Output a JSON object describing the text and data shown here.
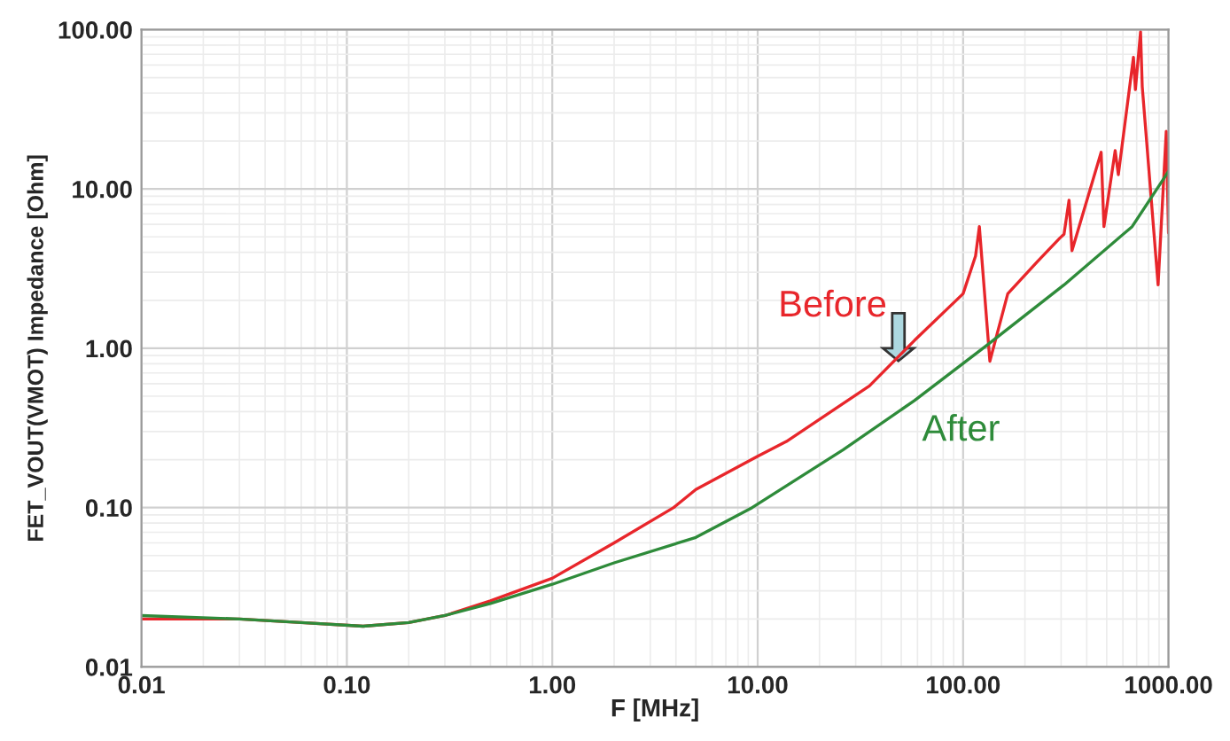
{
  "chart_data": {
    "type": "line",
    "xlabel": "F [MHz]",
    "ylabel": "FET_VOUT(VMOT) Impedance [Ohm]",
    "log": "xy",
    "grid": true,
    "legend": false,
    "xlim": [
      0.01,
      1000
    ],
    "ylim": [
      0.01,
      100
    ],
    "xticks": [
      {
        "value": 0.01,
        "label": "0.01"
      },
      {
        "value": 0.1,
        "label": "0.10"
      },
      {
        "value": 1,
        "label": "1.00"
      },
      {
        "value": 10,
        "label": "10.00"
      },
      {
        "value": 100,
        "label": "100.00"
      },
      {
        "value": 1000,
        "label": "1000.00"
      }
    ],
    "yticks": [
      {
        "value": 0.01,
        "label": "0.01"
      },
      {
        "value": 0.1,
        "label": "0.10"
      },
      {
        "value": 1,
        "label": "1.00"
      },
      {
        "value": 10,
        "label": "10.00"
      },
      {
        "value": 100,
        "label": "100.00"
      }
    ],
    "series": [
      {
        "name": "Before",
        "color": "#e8262b",
        "x": [
          0.01,
          0.03,
          0.06,
          0.12,
          0.2,
          0.3,
          0.5,
          1,
          2,
          3.9,
          5,
          10,
          13.8,
          35,
          58,
          100,
          115,
          120,
          135,
          165,
          230,
          295,
          310,
          328,
          339,
          470,
          485,
          550,
          570,
          675,
          690,
          731,
          745,
          890,
          975,
          1000
        ],
        "values": [
          0.02,
          0.02,
          0.019,
          0.018,
          0.019,
          0.021,
          0.026,
          0.036,
          0.06,
          0.1,
          0.13,
          0.21,
          0.26,
          0.58,
          1.12,
          2.2,
          3.8,
          5.8,
          0.83,
          2.2,
          3.5,
          4.9,
          5.2,
          8.5,
          4.1,
          17,
          5.8,
          17.4,
          12.3,
          67,
          42,
          97,
          44,
          2.5,
          23,
          5.3
        ]
      },
      {
        "name": "After",
        "color": "#2e8b3a",
        "x": [
          0.01,
          0.03,
          0.06,
          0.12,
          0.2,
          0.3,
          0.5,
          1,
          2,
          5,
          9.4,
          26,
          58,
          130,
          310,
          665,
          1000
        ],
        "values": [
          0.021,
          0.02,
          0.019,
          0.018,
          0.019,
          0.021,
          0.025,
          0.033,
          0.045,
          0.065,
          0.1,
          0.23,
          0.47,
          1.04,
          2.5,
          5.8,
          12.9
        ]
      }
    ]
  }
}
